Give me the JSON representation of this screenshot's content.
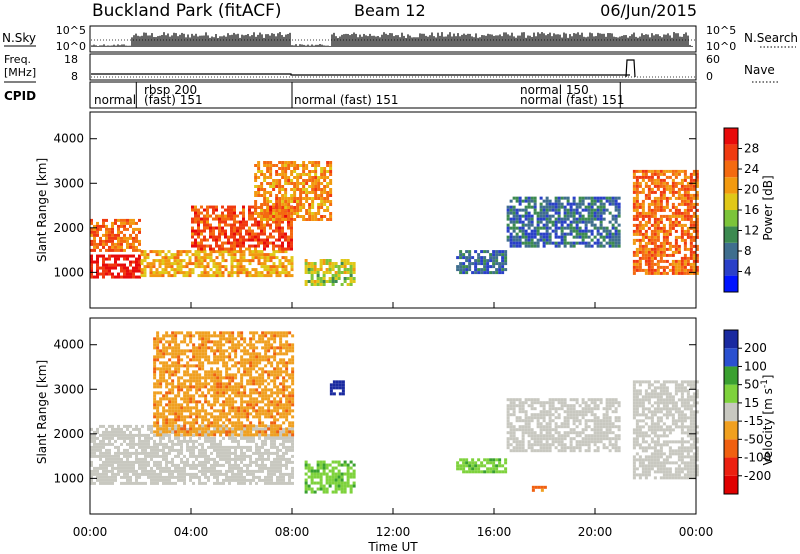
{
  "header": {
    "station": "Buckland Park (fitACF)",
    "beam": "Beam 12",
    "date": "06/Jun/2015"
  },
  "panel_labels": {
    "nsky": "N.Sky",
    "nsearch": "N.Search",
    "freq_line1": "Freq.",
    "freq_line2": "[MHz]",
    "nave": "Nave",
    "cpid": "CPID"
  },
  "small_axes": {
    "noise_left_ticks": [
      "10^5",
      "10^0"
    ],
    "noise_right_ticks": [
      "10^5",
      "10^0"
    ],
    "freq_left_ticks": [
      "18",
      "8"
    ],
    "nave_right_ticks": [
      "60",
      "0"
    ]
  },
  "cpid_segments": [
    {
      "label": "normal",
      "x": "00:00"
    },
    {
      "label": "rbsp 200",
      "x": "01:50"
    },
    {
      "label": "(fast) 151",
      "x": "01:50"
    },
    {
      "label": "normal (fast) 151",
      "x": "08:00"
    },
    {
      "label": "normal 150",
      "x": "21:00"
    },
    {
      "label": "normal (fast) 151",
      "x": "21:00"
    }
  ],
  "chart_data": [
    {
      "type": "heatmap",
      "name": "power",
      "ylabel": "Slant Range [km]",
      "yticks": [
        "1000",
        "2000",
        "3000",
        "4000"
      ],
      "ylim": [
        200,
        4600
      ],
      "colorbar": {
        "label": "Power [dB]",
        "ticks": [
          "4",
          "8",
          "12",
          "16",
          "20",
          "24",
          "28"
        ],
        "range": [
          0,
          32
        ],
        "colors": [
          "#0014ff",
          "#2a40c8",
          "#3f6e8e",
          "#3c8a50",
          "#7cc43a",
          "#e0c818",
          "#f29a10",
          "#f46a10",
          "#f03a10",
          "#e80a0a"
        ]
      },
      "regions": [
        {
          "x": [
            "00:00",
            "02:00"
          ],
          "range_km": [
            900,
            1400
          ],
          "power_db": 30
        },
        {
          "x": [
            "00:00",
            "02:00"
          ],
          "range_km": [
            1500,
            2200
          ],
          "power_db": 24
        },
        {
          "x": [
            "02:00",
            "08:00"
          ],
          "range_km": [
            900,
            1500
          ],
          "power_db": 20
        },
        {
          "x": [
            "04:00",
            "08:00"
          ],
          "range_km": [
            1500,
            2500
          ],
          "power_db": 26
        },
        {
          "x": [
            "06:30",
            "09:30"
          ],
          "range_km": [
            2200,
            3500
          ],
          "power_db": 22
        },
        {
          "x": [
            "08:30",
            "10:30"
          ],
          "range_km": [
            700,
            1300
          ],
          "power_db": 16
        },
        {
          "x": [
            "14:30",
            "16:30"
          ],
          "range_km": [
            1000,
            1500
          ],
          "power_db": 8
        },
        {
          "x": [
            "16:30",
            "21:00"
          ],
          "range_km": [
            1600,
            2700
          ],
          "power_db": 8
        },
        {
          "x": [
            "21:30",
            "24:00"
          ],
          "range_km": [
            1000,
            3300
          ],
          "power_db": 24
        }
      ]
    },
    {
      "type": "heatmap",
      "name": "velocity",
      "ylabel": "Slant Range [km]",
      "yticks": [
        "1000",
        "2000",
        "3000",
        "4000"
      ],
      "ylim": [
        200,
        4600
      ],
      "xlabel": "Time UT",
      "xticks": [
        "00:00",
        "04:00",
        "08:00",
        "12:00",
        "16:00",
        "20:00",
        "00:00"
      ],
      "colorbar": {
        "label": "Velocity [m s",
        "label_sup": "-1",
        "label_tail": "]",
        "ticks": [
          "200",
          "100",
          "50",
          "15",
          "-15",
          "-50",
          "-100",
          "-200"
        ],
        "colors": [
          "#1a2aa0",
          "#2a50d0",
          "#3aa030",
          "#7ed23c",
          "#c8c8c0",
          "#f0a020",
          "#f06010",
          "#ec2010",
          "#e00000"
        ]
      },
      "regions": [
        {
          "x": [
            "00:00",
            "08:00"
          ],
          "range_km": [
            900,
            2200
          ],
          "velocity_ms": 0
        },
        {
          "x": [
            "02:30",
            "08:00"
          ],
          "range_km": [
            2000,
            4300
          ],
          "velocity_ms": -40
        },
        {
          "x": [
            "09:30",
            "10:00"
          ],
          "range_km": [
            2900,
            3200
          ],
          "velocity_ms": 220
        },
        {
          "x": [
            "08:30",
            "10:30"
          ],
          "range_km": [
            700,
            1400
          ],
          "velocity_ms": 40
        },
        {
          "x": [
            "14:30",
            "16:30"
          ],
          "range_km": [
            1150,
            1450
          ],
          "velocity_ms": 40
        },
        {
          "x": [
            "17:30",
            "18:00"
          ],
          "range_km": [
            700,
            900
          ],
          "velocity_ms": -60
        },
        {
          "x": [
            "16:30",
            "21:00"
          ],
          "range_km": [
            1600,
            2800
          ],
          "velocity_ms": 0
        },
        {
          "x": [
            "21:30",
            "24:00"
          ],
          "range_km": [
            1000,
            3200
          ],
          "velocity_ms": 0
        }
      ]
    }
  ]
}
